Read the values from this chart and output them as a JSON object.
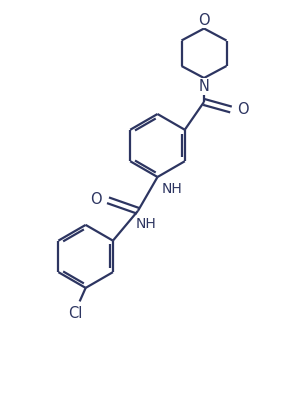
{
  "background_color": "#ffffff",
  "line_color": "#2d3561",
  "line_width": 1.6,
  "figsize": [
    3.0,
    3.96
  ],
  "dpi": 100,
  "xlim": [
    0,
    10
  ],
  "ylim": [
    0,
    13.2
  ]
}
